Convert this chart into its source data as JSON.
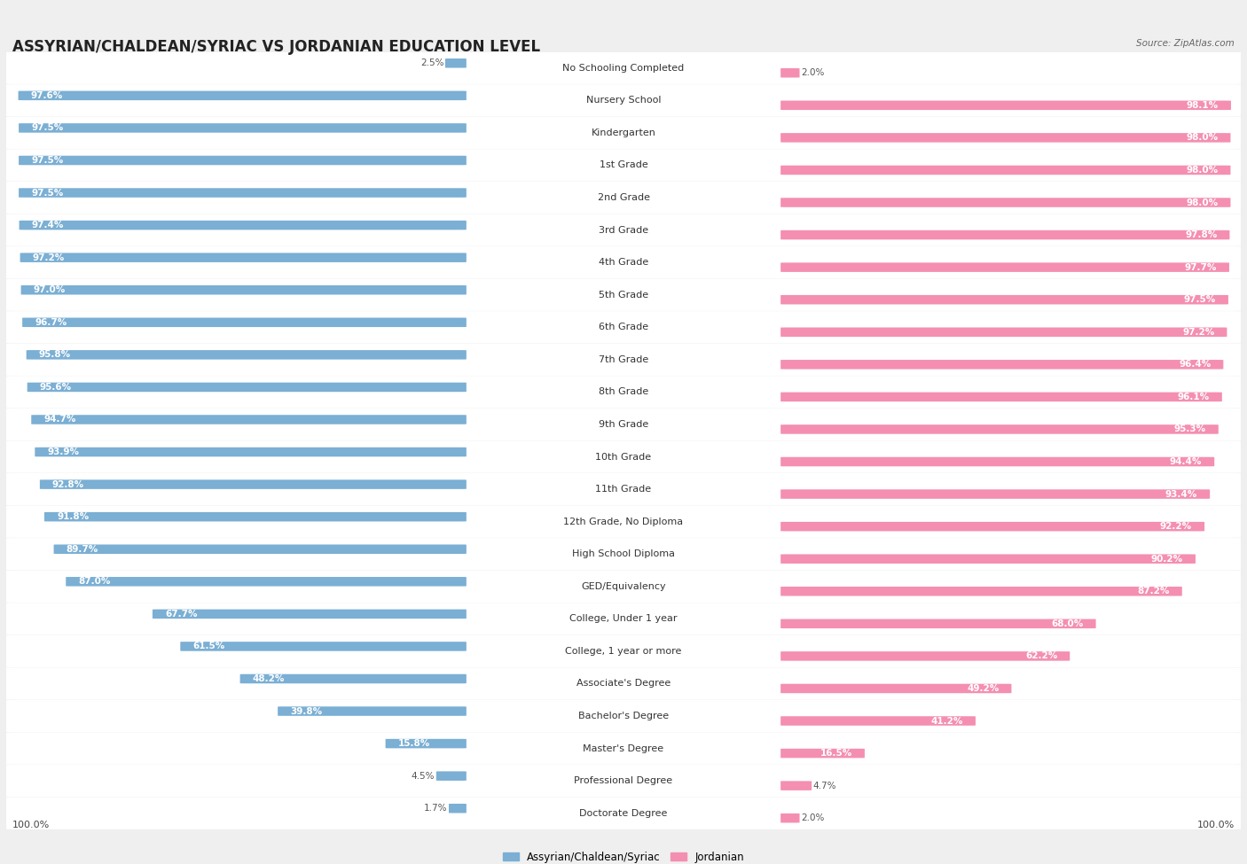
{
  "title": "ASSYRIAN/CHALDEAN/SYRIAC VS JORDANIAN EDUCATION LEVEL",
  "source": "Source: ZipAtlas.com",
  "categories": [
    "No Schooling Completed",
    "Nursery School",
    "Kindergarten",
    "1st Grade",
    "2nd Grade",
    "3rd Grade",
    "4th Grade",
    "5th Grade",
    "6th Grade",
    "7th Grade",
    "8th Grade",
    "9th Grade",
    "10th Grade",
    "11th Grade",
    "12th Grade, No Diploma",
    "High School Diploma",
    "GED/Equivalency",
    "College, Under 1 year",
    "College, 1 year or more",
    "Associate's Degree",
    "Bachelor's Degree",
    "Master's Degree",
    "Professional Degree",
    "Doctorate Degree"
  ],
  "assyrian_values": [
    2.5,
    97.6,
    97.5,
    97.5,
    97.5,
    97.4,
    97.2,
    97.0,
    96.7,
    95.8,
    95.6,
    94.7,
    93.9,
    92.8,
    91.8,
    89.7,
    87.0,
    67.7,
    61.5,
    48.2,
    39.8,
    15.8,
    4.5,
    1.7
  ],
  "jordanian_values": [
    2.0,
    98.1,
    98.0,
    98.0,
    98.0,
    97.8,
    97.7,
    97.5,
    97.2,
    96.4,
    96.1,
    95.3,
    94.4,
    93.4,
    92.2,
    90.2,
    87.2,
    68.0,
    62.2,
    49.2,
    41.2,
    16.5,
    4.7,
    2.0
  ],
  "assyrian_color": "#7bafd4",
  "jordanian_color": "#f48fb1",
  "background_color": "#efefef",
  "bar_background": "#ffffff",
  "title_fontsize": 12,
  "label_fontsize": 8.0,
  "value_fontsize": 7.5
}
